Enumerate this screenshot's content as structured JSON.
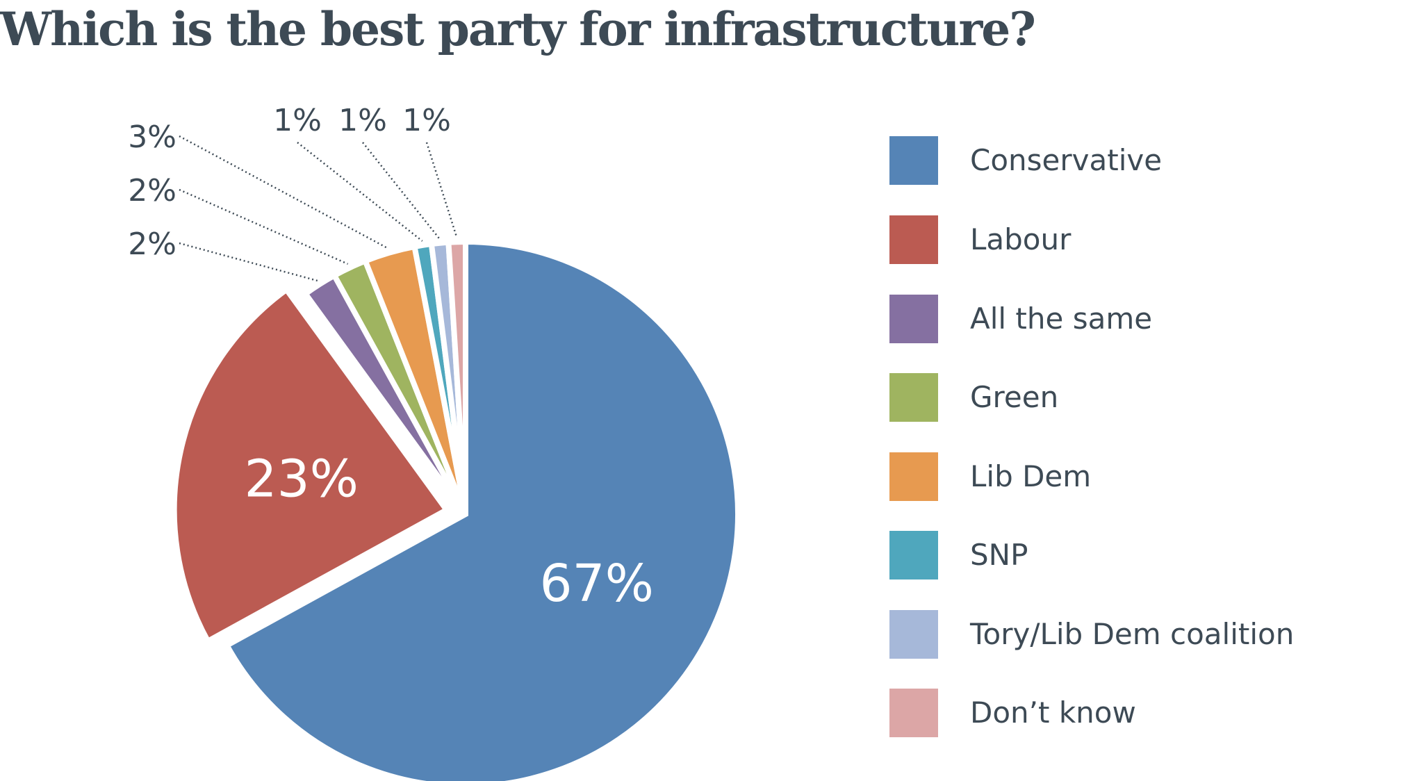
{
  "chart_data": {
    "type": "pie",
    "title": "Which is the best party for infrastructure?",
    "slices": [
      {
        "label": "Conservative",
        "value": 67,
        "display": "67%",
        "color": "#5584b6"
      },
      {
        "label": "Labour",
        "value": 23,
        "display": "23%",
        "color": "#bb5b52"
      },
      {
        "label": "All the same",
        "value": 2,
        "display": "2%",
        "color": "#8570a1"
      },
      {
        "label": "Green",
        "value": 2,
        "display": "2%",
        "color": "#9fb460"
      },
      {
        "label": "Lib Dem",
        "value": 3,
        "display": "3%",
        "color": "#e79a50"
      },
      {
        "label": "SNP",
        "value": 1,
        "display": "1%",
        "color": "#4fa7bd"
      },
      {
        "label": "Tory/Lib Dem coalition",
        "value": 1,
        "display": "1%",
        "color": "#a6b8d9"
      },
      {
        "label": "Don’t know",
        "value": 1,
        "display": "1%",
        "color": "#dca6a6"
      }
    ],
    "legend_position": "right"
  },
  "colors": {
    "text": "#3d4a55",
    "inner_label": "#ffffff",
    "leader_line": "#3d4a55"
  }
}
